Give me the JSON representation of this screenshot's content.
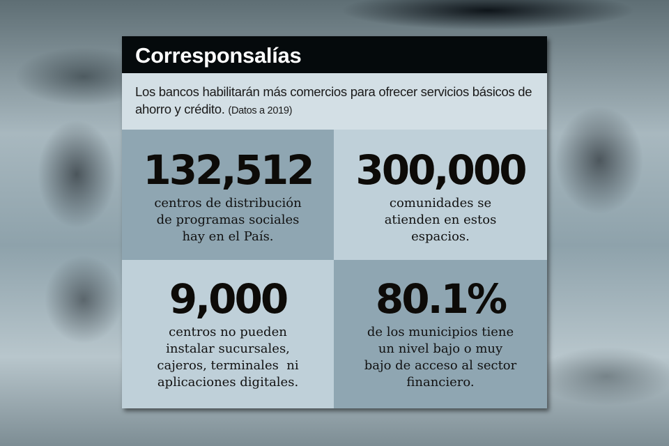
{
  "title": "Corresponsalías",
  "intro": {
    "text": "Los bancos habilitarán más comercios para ofrecer servicios básicos de ahorro y crédito.",
    "note": "(Datos a 2019)"
  },
  "stats": [
    {
      "value": "132,512",
      "lines": [
        "centros de distribución",
        "de programas sociales",
        "hay en el País."
      ]
    },
    {
      "value": "300,000",
      "lines": [
        "comunidades se",
        "atienden en estos",
        "espacios."
      ]
    },
    {
      "value": "9,000",
      "lines": [
        "centros no pueden",
        "instalar sucursales,",
        "cajeros, terminales  ni",
        "aplicaciones digitales."
      ]
    },
    {
      "value": "80.1%",
      "lines": [
        "de los municipios tiene",
        "un nivel bajo o muy",
        "bajo de acceso al sector",
        "financiero."
      ]
    }
  ],
  "colors": {
    "title_bar": "#050a0c",
    "intro_bg": "#d3dfe5",
    "cell_dark": "#8fa6b2",
    "cell_light": "#bfd0d9"
  }
}
